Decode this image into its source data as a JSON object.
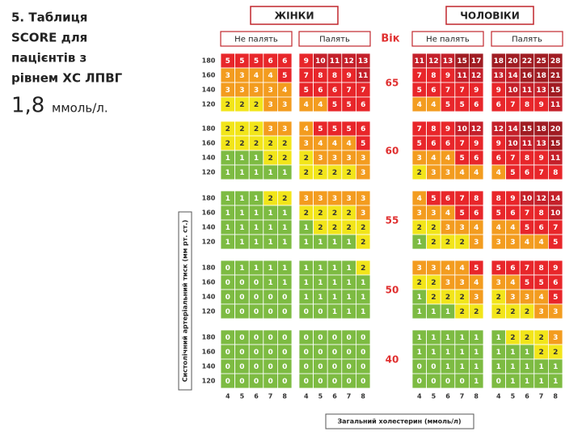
{
  "title_lines": [
    "5. Таблиця",
    "SCORE для",
    "пацієнтів з",
    "рівнем ХС ЛПВГ"
  ],
  "title_value": "1,8",
  "title_unit": "ммоль/л.",
  "groups": [
    {
      "label": "ЖІНКИ",
      "panels": [
        "Не палять",
        "Палять"
      ]
    },
    {
      "label": "ЧОЛОВІКИ",
      "panels": [
        "Не палять",
        "Палять"
      ]
    }
  ],
  "age_header": "Вік",
  "bp_levels": [
    180,
    160,
    140,
    120
  ],
  "cholesterol_levels": [
    4,
    5,
    6,
    7,
    8
  ],
  "y_axis_label": "Систолічний артеріальний тиск (мм рт. ст.)",
  "x_axis_label": "Загальний холестерин (ммоль/л)",
  "ages": [
    {
      "age": 65,
      "panels": [
        [
          [
            5,
            5,
            5,
            6,
            6
          ],
          [
            3,
            3,
            4,
            4,
            5
          ],
          [
            3,
            3,
            3,
            3,
            4
          ],
          [
            2,
            2,
            2,
            3,
            3
          ]
        ],
        [
          [
            9,
            10,
            11,
            12,
            13
          ],
          [
            7,
            8,
            8,
            9,
            11
          ],
          [
            5,
            6,
            6,
            7,
            7
          ],
          [
            4,
            4,
            5,
            5,
            6
          ]
        ],
        [
          [
            11,
            12,
            13,
            15,
            17
          ],
          [
            7,
            8,
            9,
            11,
            12
          ],
          [
            5,
            6,
            7,
            7,
            9
          ],
          [
            4,
            4,
            5,
            5,
            6
          ]
        ],
        [
          [
            18,
            20,
            22,
            25,
            28
          ],
          [
            13,
            14,
            16,
            18,
            21
          ],
          [
            9,
            10,
            11,
            13,
            15
          ],
          [
            6,
            7,
            8,
            9,
            11
          ]
        ]
      ]
    },
    {
      "age": 60,
      "panels": [
        [
          [
            2,
            2,
            2,
            3,
            3
          ],
          [
            2,
            2,
            2,
            2,
            2
          ],
          [
            1,
            1,
            1,
            2,
            2
          ],
          [
            1,
            1,
            1,
            1,
            1
          ]
        ],
        [
          [
            4,
            5,
            5,
            5,
            6
          ],
          [
            3,
            4,
            4,
            4,
            5
          ],
          [
            2,
            3,
            3,
            3,
            3
          ],
          [
            2,
            2,
            2,
            2,
            3
          ]
        ],
        [
          [
            7,
            8,
            9,
            10,
            12
          ],
          [
            5,
            6,
            6,
            7,
            9
          ],
          [
            3,
            4,
            4,
            5,
            6
          ],
          [
            2,
            3,
            3,
            4,
            4
          ]
        ],
        [
          [
            12,
            14,
            15,
            18,
            20
          ],
          [
            9,
            10,
            11,
            13,
            15
          ],
          [
            6,
            7,
            8,
            9,
            11
          ],
          [
            4,
            5,
            6,
            7,
            8
          ]
        ]
      ]
    },
    {
      "age": 55,
      "panels": [
        [
          [
            1,
            1,
            1,
            2,
            2
          ],
          [
            1,
            1,
            1,
            1,
            1
          ],
          [
            1,
            1,
            1,
            1,
            1
          ],
          [
            1,
            1,
            1,
            1,
            1
          ]
        ],
        [
          [
            3,
            3,
            3,
            3,
            3
          ],
          [
            2,
            2,
            2,
            2,
            3
          ],
          [
            1,
            2,
            2,
            2,
            2
          ],
          [
            1,
            1,
            1,
            1,
            2
          ]
        ],
        [
          [
            4,
            5,
            6,
            7,
            8
          ],
          [
            3,
            3,
            4,
            5,
            6
          ],
          [
            2,
            2,
            3,
            3,
            4
          ],
          [
            1,
            2,
            2,
            2,
            3
          ]
        ],
        [
          [
            8,
            9,
            10,
            12,
            14
          ],
          [
            5,
            6,
            7,
            8,
            10
          ],
          [
            4,
            4,
            5,
            6,
            7
          ],
          [
            3,
            3,
            4,
            4,
            5
          ]
        ]
      ]
    },
    {
      "age": 50,
      "panels": [
        [
          [
            0,
            1,
            1,
            1,
            1
          ],
          [
            0,
            0,
            0,
            1,
            1
          ],
          [
            0,
            0,
            0,
            0,
            0
          ],
          [
            0,
            0,
            0,
            0,
            0
          ]
        ],
        [
          [
            1,
            1,
            1,
            1,
            2
          ],
          [
            1,
            1,
            1,
            1,
            1
          ],
          [
            1,
            1,
            1,
            1,
            1
          ],
          [
            0,
            0,
            1,
            1,
            1
          ]
        ],
        [
          [
            3,
            3,
            4,
            4,
            5
          ],
          [
            2,
            2,
            3,
            3,
            4
          ],
          [
            1,
            2,
            2,
            2,
            3
          ],
          [
            1,
            1,
            1,
            2,
            2
          ]
        ],
        [
          [
            5,
            6,
            7,
            8,
            9
          ],
          [
            3,
            4,
            5,
            5,
            6
          ],
          [
            2,
            3,
            3,
            4,
            5
          ],
          [
            2,
            2,
            2,
            3,
            3
          ]
        ]
      ]
    },
    {
      "age": 40,
      "panels": [
        [
          [
            0,
            0,
            0,
            0,
            0
          ],
          [
            0,
            0,
            0,
            0,
            0
          ],
          [
            0,
            0,
            0,
            0,
            0
          ],
          [
            0,
            0,
            0,
            0,
            0
          ]
        ],
        [
          [
            0,
            0,
            0,
            0,
            0
          ],
          [
            0,
            0,
            0,
            0,
            0
          ],
          [
            0,
            0,
            0,
            0,
            0
          ],
          [
            0,
            0,
            0,
            0,
            0
          ]
        ],
        [
          [
            1,
            1,
            1,
            1,
            1
          ],
          [
            1,
            1,
            1,
            1,
            1
          ],
          [
            0,
            0,
            1,
            1,
            1
          ],
          [
            0,
            0,
            0,
            0,
            1
          ]
        ],
        [
          [
            1,
            2,
            2,
            2,
            3
          ],
          [
            1,
            1,
            1,
            2,
            2
          ],
          [
            1,
            1,
            1,
            1,
            1
          ],
          [
            0,
            1,
            1,
            1,
            1
          ]
        ]
      ]
    }
  ]
}
